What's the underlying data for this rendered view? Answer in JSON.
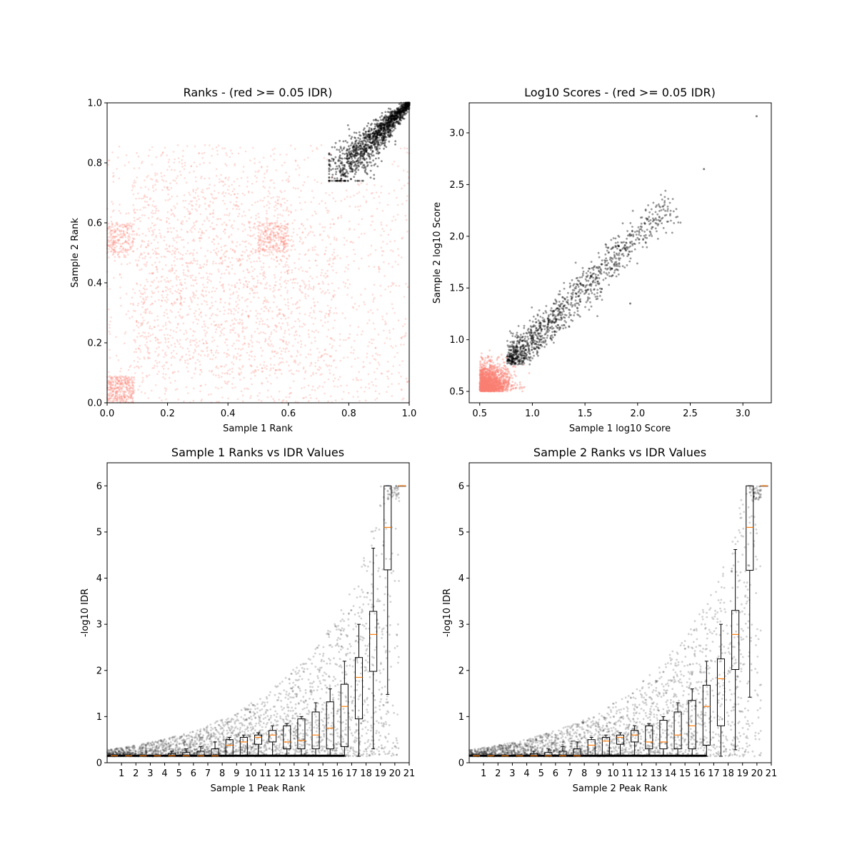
{
  "colors": {
    "fail": "#FA8072",
    "pass": "#000000",
    "median": "#FF7F0E"
  },
  "chart_data": [
    {
      "type": "scatter",
      "title": "Ranks - (red >= 0.05 IDR)",
      "xlabel": "Sample 1 Rank",
      "ylabel": "Sample 2 Rank",
      "xlim": [
        0.0,
        1.0
      ],
      "ylim": [
        0.0,
        1.0
      ],
      "xticks": [
        "0.0",
        "0.2",
        "0.4",
        "0.6",
        "0.8",
        "1.0"
      ],
      "yticks": [
        "0.0",
        "0.2",
        "0.4",
        "0.6",
        "0.8",
        "1.0"
      ],
      "grid": false,
      "series": [
        {
          "color": "#FA8072",
          "description_points": "uniform cloud over [0,1]x[0,0.85] plus dense blocks at [0,0.09]x[0,0.09], [0.09,0.6]x[0.09,0.6] (lighter), [0.5,0.6]x[0.5,0.6], [0,0.09]x[0.5,0.6]"
        },
        {
          "color": "#000000",
          "description_points": "dense cluster near (0.9,0.9) bounded by x>=0.74, y>=0.74 up to (1,1)"
        }
      ]
    },
    {
      "type": "scatter",
      "title": "Log10 Scores - (red >= 0.05 IDR)",
      "xlabel": "Sample 1 log10 Score",
      "ylabel": "Sample 2 log10 Score",
      "xlim": [
        0.4,
        3.27
      ],
      "ylim": [
        0.39,
        3.29
      ],
      "xticks": [
        "0.5",
        "1.0",
        "1.5",
        "2.0",
        "2.5",
        "3.0"
      ],
      "yticks": [
        "0.5",
        "1.0",
        "1.5",
        "2.0",
        "2.5",
        "3.0"
      ],
      "grid": false,
      "series": [
        {
          "color": "#FA8072",
          "range_x": [
            0.5,
            1.2
          ],
          "range_y": [
            0.5,
            1.05
          ]
        },
        {
          "color": "#000000",
          "range_x": [
            0.75,
            2.37
          ],
          "range_y": [
            0.75,
            2.37
          ],
          "outliers": [
            [
              2.63,
              2.65
            ],
            [
              3.13,
              3.16
            ],
            [
              1.93,
              1.35
            ]
          ]
        }
      ]
    },
    {
      "type": "box",
      "title": "Sample 1 Ranks vs IDR Values",
      "xlabel": "Sample 1 Peak Rank",
      "ylabel": "-log10 IDR",
      "xlim": [
        0,
        21
      ],
      "ylim": [
        0,
        6.5
      ],
      "xticks": [
        "1",
        "2",
        "3",
        "4",
        "5",
        "6",
        "7",
        "8",
        "9",
        "10",
        "11",
        "12",
        "13",
        "14",
        "15",
        "16",
        "17",
        "18",
        "19",
        "20",
        "21"
      ],
      "yticks": [
        "0",
        "1",
        "2",
        "3",
        "4",
        "5",
        "6"
      ],
      "boxes": [
        {
          "x": 1,
          "q1": 0.14,
          "median": 0.15,
          "q3": 0.16,
          "whisker_low": 0.14,
          "whisker_high": 0.16
        },
        {
          "x": 2,
          "q1": 0.14,
          "median": 0.15,
          "q3": 0.16,
          "whisker_low": 0.14,
          "whisker_high": 0.16
        },
        {
          "x": 3,
          "q1": 0.14,
          "median": 0.15,
          "q3": 0.16,
          "whisker_low": 0.14,
          "whisker_high": 0.16
        },
        {
          "x": 4,
          "q1": 0.14,
          "median": 0.15,
          "q3": 0.16,
          "whisker_low": 0.14,
          "whisker_high": 0.16
        },
        {
          "x": 5,
          "q1": 0.14,
          "median": 0.15,
          "q3": 0.2,
          "whisker_low": 0.14,
          "whisker_high": 0.25
        },
        {
          "x": 6,
          "q1": 0.14,
          "median": 0.15,
          "q3": 0.22,
          "whisker_low": 0.14,
          "whisker_high": 0.3
        },
        {
          "x": 7,
          "q1": 0.14,
          "median": 0.15,
          "q3": 0.25,
          "whisker_low": 0.14,
          "whisker_high": 0.35
        },
        {
          "x": 8,
          "q1": 0.14,
          "median": 0.15,
          "q3": 0.3,
          "whisker_low": 0.14,
          "whisker_high": 0.45
        },
        {
          "x": 9,
          "q1": 0.14,
          "median": 0.38,
          "q3": 0.5,
          "whisker_low": 0.14,
          "whisker_high": 0.55
        },
        {
          "x": 10,
          "q1": 0.14,
          "median": 0.45,
          "q3": 0.55,
          "whisker_low": 0.14,
          "whisker_high": 0.6
        },
        {
          "x": 11,
          "q1": 0.4,
          "median": 0.55,
          "q3": 0.6,
          "whisker_low": 0.14,
          "whisker_high": 0.65
        },
        {
          "x": 12,
          "q1": 0.45,
          "median": 0.6,
          "q3": 0.7,
          "whisker_low": 0.14,
          "whisker_high": 0.8
        },
        {
          "x": 13,
          "q1": 0.3,
          "median": 0.45,
          "q3": 0.8,
          "whisker_low": 0.14,
          "whisker_high": 0.85
        },
        {
          "x": 14,
          "q1": 0.3,
          "median": 0.48,
          "q3": 0.95,
          "whisker_low": 0.14,
          "whisker_high": 1.0
        },
        {
          "x": 15,
          "q1": 0.3,
          "median": 0.6,
          "q3": 1.1,
          "whisker_low": 0.14,
          "whisker_high": 1.3
        },
        {
          "x": 16,
          "q1": 0.3,
          "median": 0.75,
          "q3": 1.32,
          "whisker_low": 0.14,
          "whisker_high": 1.6
        },
        {
          "x": 17,
          "q1": 0.35,
          "median": 1.22,
          "q3": 1.7,
          "whisker_low": 0.14,
          "whisker_high": 2.2
        },
        {
          "x": 18,
          "q1": 0.95,
          "median": 1.85,
          "q3": 2.28,
          "whisker_low": 0.14,
          "whisker_high": 3.0
        },
        {
          "x": 19,
          "q1": 1.98,
          "median": 2.78,
          "q3": 3.28,
          "whisker_low": 0.3,
          "whisker_high": 4.65
        },
        {
          "x": 20,
          "q1": 4.18,
          "median": 5.1,
          "q3": 6.0,
          "whisker_low": 1.48,
          "whisker_high": 6.0
        },
        {
          "x": 21,
          "q1": 6.0,
          "median": 6.0,
          "q3": 6.0,
          "whisker_low": 6.0,
          "whisker_high": 6.0
        }
      ]
    },
    {
      "type": "box",
      "title": "Sample 2 Ranks vs IDR Values",
      "xlabel": "Sample 2 Peak Rank",
      "ylabel": "-log10 IDR",
      "xlim": [
        0,
        21
      ],
      "ylim": [
        0,
        6.5
      ],
      "xticks": [
        "1",
        "2",
        "3",
        "4",
        "5",
        "6",
        "7",
        "8",
        "9",
        "10",
        "11",
        "12",
        "13",
        "14",
        "15",
        "16",
        "17",
        "18",
        "19",
        "20",
        "21"
      ],
      "yticks": [
        "0",
        "1",
        "2",
        "3",
        "4",
        "5",
        "6"
      ],
      "boxes": [
        {
          "x": 1,
          "q1": 0.14,
          "median": 0.15,
          "q3": 0.16,
          "whisker_low": 0.14,
          "whisker_high": 0.16
        },
        {
          "x": 2,
          "q1": 0.14,
          "median": 0.15,
          "q3": 0.16,
          "whisker_low": 0.14,
          "whisker_high": 0.16
        },
        {
          "x": 3,
          "q1": 0.14,
          "median": 0.15,
          "q3": 0.16,
          "whisker_low": 0.14,
          "whisker_high": 0.16
        },
        {
          "x": 4,
          "q1": 0.14,
          "median": 0.15,
          "q3": 0.16,
          "whisker_low": 0.14,
          "whisker_high": 0.16
        },
        {
          "x": 5,
          "q1": 0.14,
          "median": 0.15,
          "q3": 0.2,
          "whisker_low": 0.14,
          "whisker_high": 0.25
        },
        {
          "x": 6,
          "q1": 0.14,
          "median": 0.15,
          "q3": 0.22,
          "whisker_low": 0.14,
          "whisker_high": 0.3
        },
        {
          "x": 7,
          "q1": 0.14,
          "median": 0.15,
          "q3": 0.25,
          "whisker_low": 0.14,
          "whisker_high": 0.35
        },
        {
          "x": 8,
          "q1": 0.14,
          "median": 0.15,
          "q3": 0.3,
          "whisker_low": 0.14,
          "whisker_high": 0.45
        },
        {
          "x": 9,
          "q1": 0.14,
          "median": 0.38,
          "q3": 0.5,
          "whisker_low": 0.14,
          "whisker_high": 0.55
        },
        {
          "x": 10,
          "q1": 0.14,
          "median": 0.47,
          "q3": 0.55,
          "whisker_low": 0.14,
          "whisker_high": 0.6
        },
        {
          "x": 11,
          "q1": 0.4,
          "median": 0.55,
          "q3": 0.6,
          "whisker_low": 0.14,
          "whisker_high": 0.65
        },
        {
          "x": 12,
          "q1": 0.45,
          "median": 0.6,
          "q3": 0.7,
          "whisker_low": 0.14,
          "whisker_high": 0.8
        },
        {
          "x": 13,
          "q1": 0.3,
          "median": 0.45,
          "q3": 0.8,
          "whisker_low": 0.14,
          "whisker_high": 0.85
        },
        {
          "x": 14,
          "q1": 0.3,
          "median": 0.45,
          "q3": 0.92,
          "whisker_low": 0.14,
          "whisker_high": 1.0
        },
        {
          "x": 15,
          "q1": 0.3,
          "median": 0.6,
          "q3": 1.1,
          "whisker_low": 0.14,
          "whisker_high": 1.3
        },
        {
          "x": 16,
          "q1": 0.3,
          "median": 0.8,
          "q3": 1.35,
          "whisker_low": 0.14,
          "whisker_high": 1.6
        },
        {
          "x": 17,
          "q1": 0.38,
          "median": 1.22,
          "q3": 1.68,
          "whisker_low": 0.14,
          "whisker_high": 2.2
        },
        {
          "x": 18,
          "q1": 0.8,
          "median": 1.82,
          "q3": 2.25,
          "whisker_low": 0.14,
          "whisker_high": 3.0
        },
        {
          "x": 19,
          "q1": 2.02,
          "median": 2.78,
          "q3": 3.3,
          "whisker_low": 0.28,
          "whisker_high": 4.62
        },
        {
          "x": 20,
          "q1": 4.17,
          "median": 5.1,
          "q3": 6.0,
          "whisker_low": 1.42,
          "whisker_high": 6.0
        },
        {
          "x": 21,
          "q1": 6.0,
          "median": 6.0,
          "q3": 6.0,
          "whisker_low": 6.0,
          "whisker_high": 6.0
        }
      ]
    }
  ]
}
